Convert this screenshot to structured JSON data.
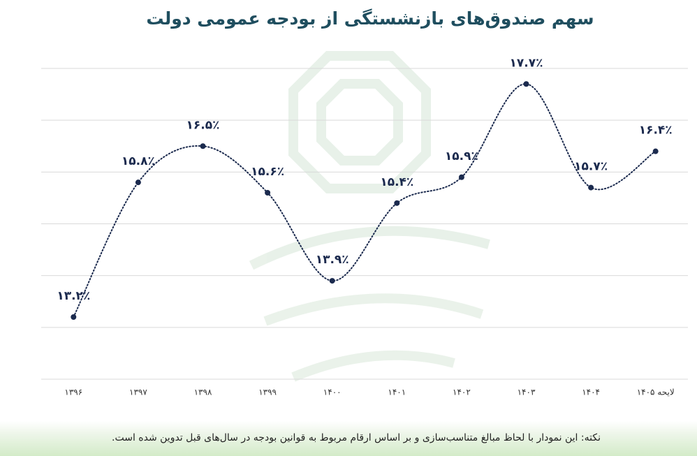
{
  "chart_data": {
    "type": "line",
    "title": "سهم صندوق‌های بازنشستگی از بودجه عمومی دولت",
    "categories": [
      "۱۳۹۶",
      "۱۳۹۷",
      "۱۳۹۸",
      "۱۳۹۹",
      "۱۴۰۰",
      "۱۴۰۱",
      "۱۴۰۲",
      "۱۴۰۳",
      "۱۴۰۴",
      "لایحه ۱۴۰۵"
    ],
    "series": [
      {
        "color": "#1b2a4e",
        "values": [
          13.2,
          15.8,
          16.5,
          15.6,
          13.9,
          15.4,
          15.9,
          17.7,
          15.7,
          16.4
        ],
        "value_labels": [
          "۱۳.۲٪",
          "۱۵.۸٪",
          "۱۶.۵٪",
          "۱۵.۶٪",
          "۱۳.۹٪",
          "۱۵.۴٪",
          "۱۵.۹٪",
          "۱۷.۷٪",
          "۱۵.۷٪",
          "۱۶.۴٪"
        ]
      }
    ],
    "ylim": [
      12,
      18
    ],
    "yticks": [
      12,
      13,
      14,
      15,
      16,
      17,
      18
    ],
    "grid": true,
    "note": "نکته: این نمودار با لحاظ مبالغ متناسب‌سازی و بر اساس ارقام مربوط به قوانین بودجه در سال‌های قبل تدوین شده است."
  }
}
